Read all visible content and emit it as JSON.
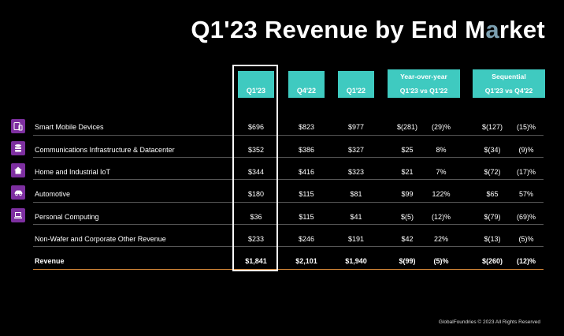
{
  "title_prefix": "Q1'23 Revenue by End M",
  "title_accent": "a",
  "title_suffix": "rket",
  "headers": {
    "q1_23": "Q1'23",
    "q4_22": "Q4'22",
    "q1_22": "Q1'22",
    "yoy_title": "Year-over-year",
    "yoy_sub": "Q1'23 vs Q1'22",
    "seq_title": "Sequential",
    "seq_sub": "Q1'23 vs Q4'22"
  },
  "rows": [
    {
      "label": "Smart Mobile Devices",
      "icon": "smartphone-icon",
      "q1_23": "$696",
      "q4_22": "$823",
      "q1_22": "$977",
      "yoy_d": "$(281)",
      "yoy_p": "(29)%",
      "seq_d": "$(127)",
      "seq_p": "(15)%"
    },
    {
      "label": "Communications Infrastructure & Datacenter",
      "icon": "database-icon",
      "q1_23": "$352",
      "q4_22": "$386",
      "q1_22": "$327",
      "yoy_d": "$25",
      "yoy_p": "8%",
      "seq_d": "$(34)",
      "seq_p": "(9)%"
    },
    {
      "label": "Home and Industrial IoT",
      "icon": "home-icon",
      "q1_23": "$344",
      "q4_22": "$416",
      "q1_22": "$323",
      "yoy_d": "$21",
      "yoy_p": "7%",
      "seq_d": "$(72)",
      "seq_p": "(17)%"
    },
    {
      "label": "Automotive",
      "icon": "car-icon",
      "q1_23": "$180",
      "q4_22": "$115",
      "q1_22": "$81",
      "yoy_d": "$99",
      "yoy_p": "122%",
      "seq_d": "$65",
      "seq_p": "57%"
    },
    {
      "label": "Personal Computing",
      "icon": "laptop-icon",
      "q1_23": "$36",
      "q4_22": "$115",
      "q1_22": "$41",
      "yoy_d": "$(5)",
      "yoy_p": "(12)%",
      "seq_d": "$(79)",
      "seq_p": "(69)%"
    },
    {
      "label": "Non-Wafer and Corporate Other Revenue",
      "icon": "",
      "q1_23": "$233",
      "q4_22": "$246",
      "q1_22": "$191",
      "yoy_d": "$42",
      "yoy_p": "22%",
      "seq_d": "$(13)",
      "seq_p": "(5)%"
    },
    {
      "label": "Revenue",
      "icon": "",
      "q1_23": "$1,841",
      "q4_22": "$2,101",
      "q1_22": "$1,940",
      "yoy_d": "$(99)",
      "yoy_p": "(5)%",
      "seq_d": "$(260)",
      "seq_p": "(12)%"
    }
  ],
  "footer": "GlobalFoundries © 2023 All Rights Reserved"
}
